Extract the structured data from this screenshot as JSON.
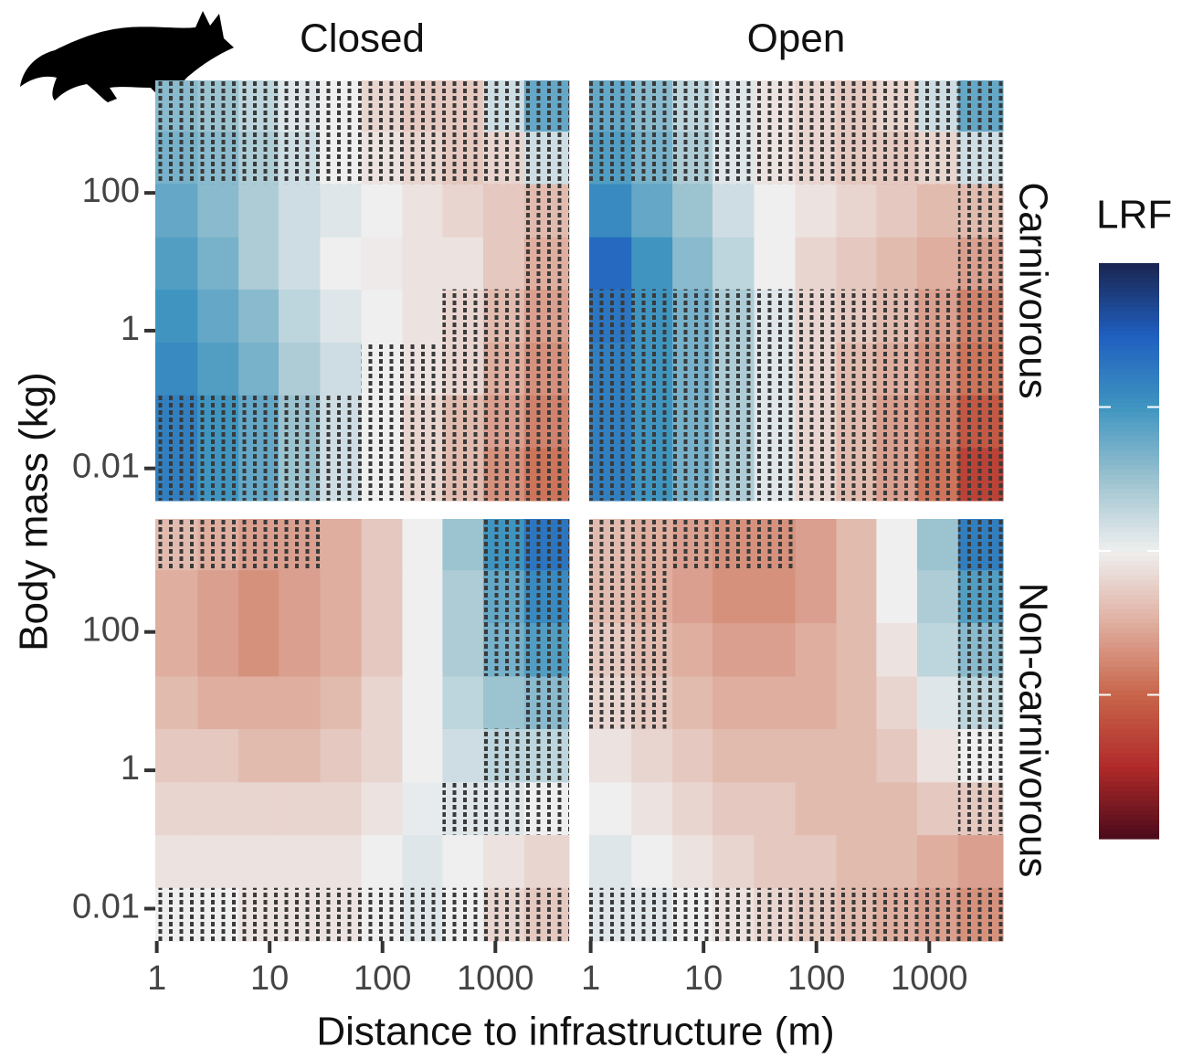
{
  "chart_data": {
    "type": "heatmap",
    "xlabel": "Distance to infrastructure (m)",
    "ylabel": "Body mass (kg)",
    "columns": [
      "Closed",
      "Open"
    ],
    "rows": [
      "Carnivorous",
      "Non-carnivorous"
    ],
    "xlog": true,
    "ylog": true,
    "xlim": [
      0.97,
      4500
    ],
    "ylim": [
      0.0034,
      4300
    ],
    "xticks": [
      1,
      10,
      100,
      1000
    ],
    "yticks": [
      0.01,
      1,
      100
    ],
    "x_edges": [
      0.97,
      2.3,
      5.3,
      12,
      28,
      65,
      150,
      340,
      780,
      1800,
      4500
    ],
    "y_edges": [
      0.0034,
      0.02,
      0.117,
      0.68,
      4,
      23,
      136,
      790,
      4300
    ],
    "panels": [
      [
        {
          "values": [
            [
              0.6,
              0.5,
              0.4,
              0.25,
              0.1,
              0,
              -0.1,
              -0.2,
              -0.35,
              -0.45
            ],
            [
              0.6,
              0.5,
              0.4,
              0.25,
              0.1,
              0,
              -0.1,
              -0.2,
              -0.3,
              -0.4
            ],
            [
              0.55,
              0.45,
              0.35,
              0.2,
              0.1,
              0,
              -0.05,
              -0.1,
              -0.25,
              -0.35
            ],
            [
              0.5,
              0.4,
              0.3,
              0.15,
              0.05,
              0,
              -0.05,
              -0.1,
              -0.2,
              -0.3
            ],
            [
              0.45,
              0.35,
              0.2,
              0.1,
              0,
              -0.02,
              -0.05,
              -0.05,
              -0.15,
              -0.25
            ],
            [
              0.4,
              0.3,
              0.2,
              0.1,
              0.05,
              0,
              -0.05,
              -0.1,
              -0.15,
              -0.2
            ],
            [
              0.35,
              0.3,
              0.2,
              0.1,
              0,
              -0.05,
              -0.1,
              -0.15,
              -0.1,
              0.1
            ],
            [
              0.3,
              0.25,
              0.15,
              0.05,
              0,
              -0.1,
              -0.15,
              -0.15,
              0.1,
              0.4
            ]
          ],
          "hatched": [
            [
              1,
              1,
              1,
              1,
              1,
              1,
              1,
              1,
              1,
              1
            ],
            [
              1,
              1,
              1,
              1,
              1,
              1,
              1,
              1,
              1,
              1
            ],
            [
              0,
              0,
              0,
              0,
              0,
              1,
              1,
              1,
              1,
              1
            ],
            [
              0,
              0,
              0,
              0,
              0,
              0,
              0,
              1,
              1,
              1
            ],
            [
              0,
              0,
              0,
              0,
              0,
              0,
              0,
              0,
              0,
              1
            ],
            [
              0,
              0,
              0,
              0,
              0,
              0,
              0,
              0,
              0,
              1
            ],
            [
              1,
              1,
              1,
              1,
              1,
              1,
              1,
              1,
              1,
              1
            ],
            [
              1,
              1,
              1,
              1,
              1,
              1,
              1,
              1,
              1,
              1
            ]
          ]
        },
        {
          "values": [
            [
              0.6,
              0.5,
              0.35,
              0.2,
              0.05,
              -0.1,
              -0.2,
              -0.3,
              -0.45,
              -0.65
            ],
            [
              0.6,
              0.5,
              0.35,
              0.2,
              0.05,
              -0.1,
              -0.2,
              -0.3,
              -0.4,
              -0.55
            ],
            [
              0.6,
              0.5,
              0.35,
              0.2,
              0.05,
              -0.1,
              -0.2,
              -0.25,
              -0.35,
              -0.45
            ],
            [
              0.65,
              0.5,
              0.35,
              0.2,
              0.05,
              -0.1,
              -0.15,
              -0.2,
              -0.3,
              -0.4
            ],
            [
              0.7,
              0.5,
              0.3,
              0.15,
              0,
              -0.1,
              -0.15,
              -0.2,
              -0.25,
              -0.3
            ],
            [
              0.55,
              0.4,
              0.25,
              0.1,
              0,
              -0.05,
              -0.1,
              -0.15,
              -0.2,
              -0.2
            ],
            [
              0.45,
              0.35,
              0.2,
              0.05,
              -0.05,
              -0.1,
              -0.15,
              -0.15,
              -0.1,
              0.1
            ],
            [
              0.4,
              0.3,
              0.15,
              0.05,
              -0.05,
              -0.1,
              -0.15,
              -0.1,
              0.1,
              0.4
            ]
          ],
          "hatched": [
            [
              1,
              1,
              1,
              1,
              1,
              1,
              1,
              1,
              1,
              1
            ],
            [
              1,
              1,
              1,
              1,
              1,
              1,
              1,
              1,
              1,
              1
            ],
            [
              1,
              1,
              1,
              1,
              1,
              1,
              1,
              1,
              1,
              1
            ],
            [
              1,
              1,
              1,
              1,
              1,
              1,
              1,
              1,
              1,
              1
            ],
            [
              0,
              0,
              0,
              0,
              0,
              0,
              0,
              0,
              0,
              1
            ],
            [
              0,
              0,
              0,
              0,
              0,
              0,
              0,
              0,
              0,
              1
            ],
            [
              1,
              1,
              1,
              1,
              1,
              1,
              1,
              1,
              1,
              1
            ],
            [
              1,
              1,
              1,
              1,
              1,
              1,
              1,
              1,
              1,
              1
            ]
          ]
        }
      ],
      [
        {
          "values": [
            [
              0,
              0,
              -0.05,
              -0.05,
              -0.05,
              0,
              0.05,
              0,
              -0.1,
              -0.15
            ],
            [
              -0.05,
              -0.05,
              -0.05,
              -0.05,
              -0.05,
              0,
              0.05,
              0,
              -0.05,
              -0.1
            ],
            [
              -0.1,
              -0.1,
              -0.1,
              -0.1,
              -0.1,
              -0.05,
              0.02,
              0.05,
              0.05,
              0
            ],
            [
              -0.15,
              -0.15,
              -0.2,
              -0.2,
              -0.15,
              -0.1,
              0,
              0.1,
              0.15,
              0.15
            ],
            [
              -0.2,
              -0.25,
              -0.25,
              -0.25,
              -0.2,
              -0.1,
              0,
              0.15,
              0.25,
              0.3
            ],
            [
              -0.25,
              -0.3,
              -0.35,
              -0.3,
              -0.25,
              -0.15,
              0,
              0.2,
              0.35,
              0.45
            ],
            [
              -0.25,
              -0.3,
              -0.35,
              -0.3,
              -0.25,
              -0.15,
              0,
              0.2,
              0.4,
              0.55
            ],
            [
              -0.2,
              -0.25,
              -0.3,
              -0.3,
              -0.25,
              -0.15,
              0,
              0.25,
              0.5,
              0.65
            ]
          ],
          "hatched": [
            [
              1,
              1,
              1,
              1,
              1,
              1,
              1,
              1,
              1,
              1
            ],
            [
              0,
              0,
              0,
              0,
              0,
              0,
              0,
              0,
              0,
              0
            ],
            [
              0,
              0,
              0,
              0,
              0,
              0,
              0,
              1,
              1,
              1
            ],
            [
              0,
              0,
              0,
              0,
              0,
              0,
              0,
              0,
              1,
              1
            ],
            [
              0,
              0,
              0,
              0,
              0,
              0,
              0,
              0,
              0,
              1
            ],
            [
              0,
              0,
              0,
              0,
              0,
              0,
              0,
              0,
              1,
              1
            ],
            [
              0,
              0,
              0,
              0,
              0,
              0,
              0,
              0,
              1,
              1
            ],
            [
              1,
              1,
              1,
              1,
              0,
              0,
              0,
              0,
              1,
              1
            ]
          ]
        },
        {
          "values": [
            [
              0.05,
              0.05,
              0,
              -0.05,
              -0.1,
              -0.15,
              -0.2,
              -0.25,
              -0.3,
              -0.35
            ],
            [
              0.05,
              0,
              -0.05,
              -0.1,
              -0.15,
              -0.15,
              -0.2,
              -0.2,
              -0.25,
              -0.3
            ],
            [
              0,
              -0.05,
              -0.1,
              -0.15,
              -0.15,
              -0.2,
              -0.2,
              -0.2,
              -0.15,
              -0.15
            ],
            [
              -0.05,
              -0.1,
              -0.15,
              -0.2,
              -0.2,
              -0.2,
              -0.2,
              -0.15,
              -0.05,
              0
            ],
            [
              -0.1,
              -0.15,
              -0.2,
              -0.25,
              -0.25,
              -0.25,
              -0.2,
              -0.1,
              0.05,
              0.15
            ],
            [
              -0.15,
              -0.2,
              -0.25,
              -0.3,
              -0.3,
              -0.25,
              -0.2,
              -0.05,
              0.15,
              0.3
            ],
            [
              -0.2,
              -0.25,
              -0.3,
              -0.35,
              -0.35,
              -0.3,
              -0.2,
              0,
              0.2,
              0.45
            ],
            [
              -0.2,
              -0.25,
              -0.3,
              -0.35,
              -0.35,
              -0.3,
              -0.2,
              0,
              0.25,
              0.6
            ]
          ],
          "hatched": [
            [
              1,
              1,
              1,
              1,
              1,
              1,
              1,
              1,
              1,
              1
            ],
            [
              0,
              0,
              0,
              0,
              0,
              0,
              0,
              0,
              0,
              0
            ],
            [
              0,
              0,
              0,
              0,
              0,
              0,
              0,
              0,
              0,
              1
            ],
            [
              0,
              0,
              0,
              0,
              0,
              0,
              0,
              0,
              0,
              1
            ],
            [
              1,
              1,
              0,
              0,
              0,
              0,
              0,
              0,
              0,
              1
            ],
            [
              1,
              1,
              0,
              0,
              0,
              0,
              0,
              0,
              0,
              1
            ],
            [
              1,
              1,
              0,
              0,
              0,
              0,
              0,
              0,
              0,
              1
            ],
            [
              1,
              1,
              1,
              1,
              1,
              0,
              0,
              0,
              0,
              1
            ]
          ]
        }
      ]
    ],
    "colorbar": {
      "title": "LRF",
      "lim": [
        -1,
        1
      ],
      "ticks": [
        -0.5,
        0,
        0.5
      ],
      "colors": [
        "#4a0a1a",
        "#b02a2a",
        "#c8654a",
        "#dfae9f",
        "#efefef",
        "#9cc3d0",
        "#3f95c0",
        "#1f5fc0",
        "#1a2550"
      ]
    }
  }
}
